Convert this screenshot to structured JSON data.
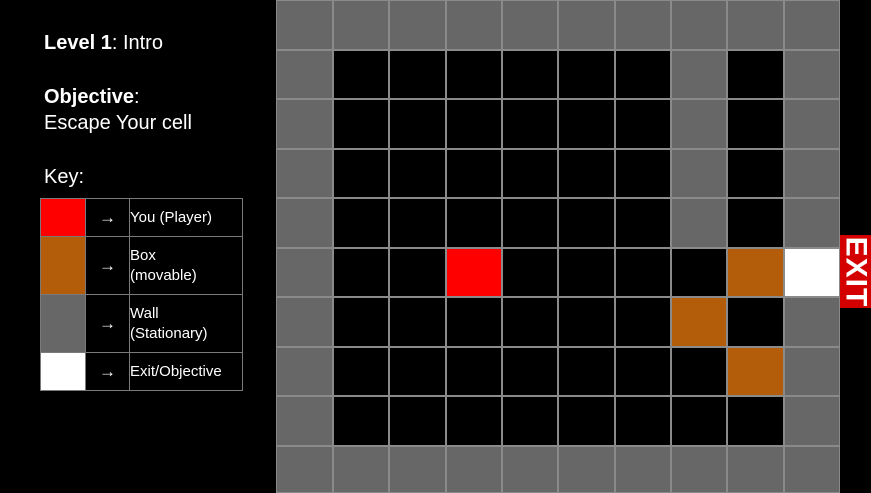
{
  "level": {
    "label": "Level 1",
    "name": ": Intro"
  },
  "objective": {
    "label": "Objective",
    "colon": ":",
    "text": "Escape Your cell"
  },
  "key": {
    "label": "Key:",
    "entries": [
      {
        "color": "#ff0000",
        "arrow": "→",
        "line1": "You (Player)",
        "line2": ""
      },
      {
        "color": "#b35c0a",
        "arrow": "→",
        "line1": "Box",
        "line2": "(movable)"
      },
      {
        "color": "#676767",
        "arrow": "→",
        "line1": "Wall",
        "line2": "(Stationary)"
      },
      {
        "color": "#ffffff",
        "arrow": "→",
        "line1": "Exit/Objective",
        "line2": ""
      }
    ]
  },
  "exit_sign": {
    "text": "EXIT",
    "color": "#d40000"
  },
  "colors": {
    "wall": "#676767",
    "floor": "#000000",
    "player": "#ff0000",
    "box": "#b35c0a",
    "exit": "#ffffff"
  },
  "board": {
    "legend": {
      "W": "wall",
      ".": "floor",
      "P": "player",
      "B": "box",
      "E": "exit"
    },
    "rows": [
      "WWWWWWWWWW",
      "W......W.W",
      "W......W.W",
      "W......W.W",
      "W......W.W",
      "W..P....BE",
      "W......B.W",
      "W.......BW",
      "W........W",
      "WWWWWWWWWW"
    ]
  }
}
